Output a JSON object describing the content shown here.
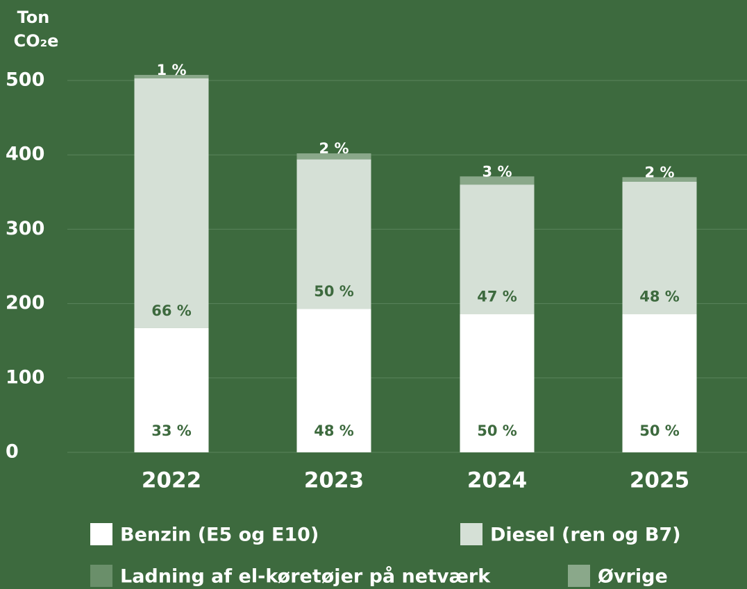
{
  "chart_data": {
    "type": "stacked_bar",
    "y_label": [
      "Ton",
      "CO₂e"
    ],
    "categories": [
      "2022",
      "2023",
      "2024",
      "2025"
    ],
    "series": [
      {
        "name": "Benzin (E5 og E10)",
        "color": "#ffffff",
        "values": [
          167,
          193,
          186,
          186
        ],
        "share_labels": [
          "33 %",
          "48 %",
          "50 %",
          "50 %"
        ]
      },
      {
        "name": "Diesel (ren og B7)",
        "color": "#d5e0d6",
        "values": [
          336,
          201,
          174,
          178
        ],
        "share_labels": [
          "66 %",
          "50 %",
          "47 %",
          "48 %"
        ]
      },
      {
        "name": "Ladning af el-køretøjer på netværk",
        "color": "#6a8f6a",
        "values": [
          0,
          0,
          0,
          0
        ]
      },
      {
        "name": "Øvrige",
        "color": "#8aa88a",
        "values": [
          4.5,
          8,
          11,
          6
        ],
        "share_labels": [
          "1 %",
          "2 %",
          "3 %",
          "2 %"
        ]
      }
    ],
    "ylim": [
      0,
      500
    ],
    "yticks": [
      0,
      100,
      200,
      300,
      400,
      500
    ],
    "grid": true
  }
}
